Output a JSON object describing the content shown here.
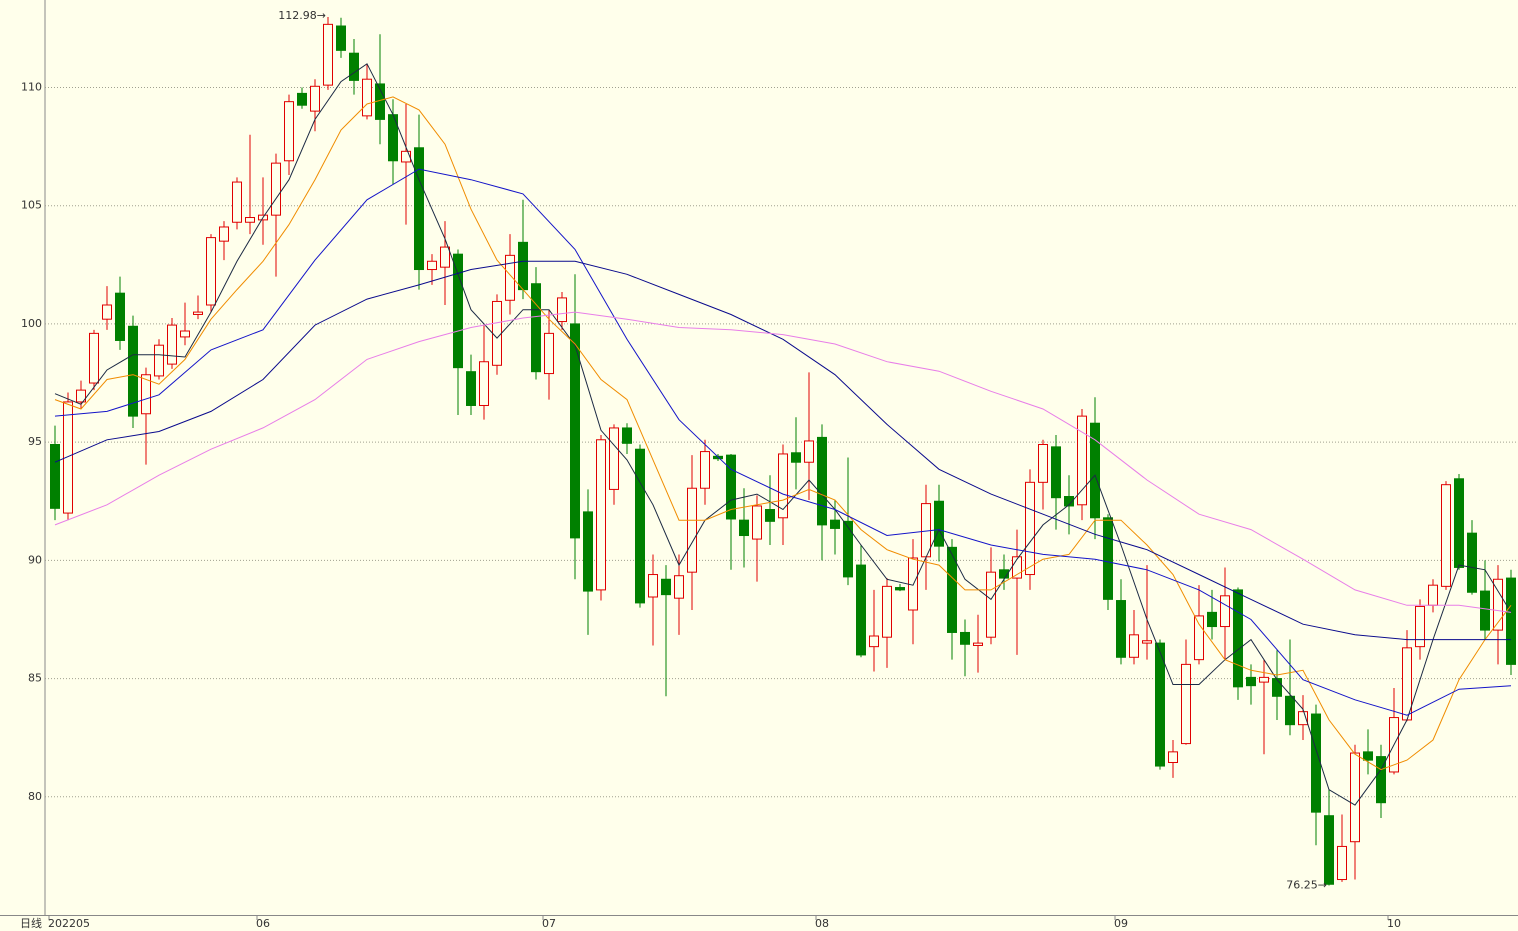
{
  "chart_data": {
    "type": "candlestick",
    "label": "日线",
    "high_label": "112.98→",
    "low_label": "76.25→",
    "ylim": [
      75.0,
      113.7
    ],
    "yticks": [
      80,
      85,
      90,
      95,
      100,
      105,
      110
    ],
    "grid": true,
    "up_color": "#e00000",
    "down_color": "#008000",
    "categories": [
      "202205",
      null,
      null,
      null,
      null,
      null,
      null,
      null,
      null,
      null,
      null,
      null,
      null,
      null,
      null,
      null,
      "06",
      null,
      null,
      null,
      null,
      null,
      null,
      null,
      null,
      null,
      null,
      null,
      null,
      null,
      null,
      null,
      null,
      null,
      null,
      null,
      null,
      null,
      "07",
      null,
      null,
      null,
      null,
      null,
      null,
      null,
      null,
      null,
      null,
      null,
      null,
      null,
      null,
      null,
      null,
      null,
      null,
      null,
      null,
      "08",
      null,
      null,
      null,
      null,
      null,
      null,
      null,
      null,
      null,
      null,
      null,
      null,
      null,
      null,
      null,
      null,
      null,
      null,
      null,
      null,
      null,
      null,
      "09",
      null,
      null,
      null,
      null,
      null,
      null,
      null,
      null,
      null,
      null,
      null,
      null,
      null,
      null,
      null,
      null,
      null,
      null,
      null,
      null,
      "10",
      null,
      null,
      null,
      null,
      null,
      null,
      null,
      null,
      null
    ],
    "open": [
      94.9,
      92.0,
      96.7,
      97.5,
      100.2,
      101.3,
      99.9,
      96.2,
      97.8,
      98.3,
      99.45,
      100.4,
      100.8,
      103.5,
      104.3,
      104.3,
      104.4,
      104.6,
      106.9,
      109.75,
      109.0,
      110.1,
      112.6,
      111.45,
      108.8,
      110.15,
      108.85,
      106.85,
      107.45,
      102.3,
      102.4,
      102.95,
      97.98,
      96.55,
      98.25,
      101.0,
      103.45,
      101.7,
      97.9,
      100.1,
      100.0,
      92.05,
      88.75,
      93.0,
      95.6,
      94.7,
      88.45,
      89.2,
      88.4,
      89.5,
      93.05,
      94.4,
      94.45,
      91.7,
      90.9,
      92.15,
      91.8,
      94.55,
      94.15,
      95.2,
      91.7,
      91.65,
      89.8,
      86.35,
      86.75,
      88.85,
      87.9,
      90.15,
      92.5,
      90.55,
      86.95,
      86.4,
      86.75,
      89.6,
      89.25,
      89.4,
      93.3,
      94.8,
      92.7,
      92.35,
      95.8,
      91.8,
      88.3,
      85.9,
      86.5,
      86.5,
      81.45,
      82.25,
      85.8,
      87.8,
      87.2,
      88.75,
      85.05,
      84.85,
      85.0,
      84.25,
      83.05,
      83.5,
      79.2,
      76.5,
      78.1,
      81.9,
      81.7,
      81.05,
      83.25,
      86.35,
      88.1,
      88.9,
      93.45,
      91.15,
      88.7,
      87.05,
      89.25
    ],
    "high": [
      95.7,
      97.1,
      97.6,
      99.75,
      101.6,
      102.0,
      100.35,
      98.15,
      99.35,
      100.25,
      100.9,
      101.2,
      103.8,
      104.35,
      106.2,
      108.0,
      106.2,
      107.2,
      109.7,
      110.0,
      110.35,
      112.98,
      112.95,
      112.05,
      111.0,
      112.25,
      109.5,
      109.3,
      108.85,
      102.95,
      104.35,
      103.15,
      98.7,
      99.95,
      101.25,
      103.8,
      105.25,
      102.4,
      100.6,
      101.35,
      102.1,
      93.0,
      95.3,
      95.75,
      95.8,
      94.9,
      90.25,
      89.8,
      90.25,
      94.45,
      95.1,
      94.5,
      94.5,
      93.05,
      92.75,
      93.6,
      94.9,
      96.05,
      97.95,
      95.75,
      92.55,
      94.35,
      90.65,
      88.75,
      89.25,
      89.0,
      90.9,
      93.2,
      93.2,
      90.9,
      87.5,
      87.7,
      90.55,
      90.25,
      91.3,
      93.85,
      95.1,
      95.3,
      93.6,
      96.4,
      96.9,
      91.95,
      89.2,
      87.9,
      89.8,
      86.65,
      82.4,
      86.65,
      88.95,
      88.75,
      89.7,
      88.85,
      85.6,
      85.8,
      86.2,
      86.65,
      84.3,
      83.9,
      80.3,
      79.25,
      82.2,
      82.85,
      82.2,
      84.6,
      87.05,
      88.35,
      89.2,
      93.35,
      93.65,
      91.7,
      90.0,
      89.8,
      89.6
    ],
    "low": [
      91.7,
      91.7,
      96.4,
      97.2,
      99.75,
      98.9,
      95.6,
      94.05,
      97.65,
      98.1,
      99.1,
      100.2,
      100.5,
      102.7,
      104.0,
      103.8,
      103.35,
      102.0,
      106.3,
      109.1,
      108.15,
      109.9,
      111.25,
      109.7,
      108.65,
      107.6,
      105.9,
      104.2,
      101.45,
      101.65,
      100.8,
      96.15,
      96.15,
      95.95,
      97.85,
      100.4,
      101.05,
      97.65,
      96.8,
      99.75,
      89.2,
      86.85,
      88.3,
      92.35,
      94.5,
      88.0,
      86.4,
      84.25,
      86.85,
      87.9,
      92.35,
      94.2,
      89.6,
      89.7,
      89.1,
      90.65,
      90.65,
      93.0,
      92.55,
      90.0,
      90.25,
      88.95,
      85.9,
      85.3,
      85.45,
      88.7,
      86.45,
      88.75,
      89.95,
      85.8,
      85.1,
      85.25,
      86.45,
      88.75,
      86.0,
      88.75,
      92.15,
      91.3,
      91.1,
      91.7,
      90.9,
      87.9,
      85.6,
      85.6,
      85.8,
      81.15,
      80.8,
      82.2,
      85.6,
      86.65,
      85.8,
      84.1,
      83.9,
      81.8,
      83.25,
      82.6,
      82.4,
      77.95,
      76.25,
      76.4,
      76.5,
      80.95,
      79.1,
      80.95,
      83.2,
      85.8,
      87.8,
      88.75,
      89.6,
      88.55,
      86.65,
      85.6,
      85.15
    ],
    "close": [
      92.2,
      96.7,
      97.2,
      99.6,
      100.8,
      99.3,
      96.1,
      97.85,
      99.1,
      99.95,
      99.7,
      100.5,
      103.65,
      104.1,
      106.0,
      104.5,
      104.6,
      106.8,
      109.4,
      109.25,
      110.05,
      112.67,
      111.57,
      110.3,
      110.35,
      108.65,
      106.9,
      107.3,
      102.3,
      102.65,
      103.25,
      98.15,
      96.55,
      98.4,
      100.95,
      102.9,
      101.45,
      97.98,
      99.6,
      101.1,
      90.95,
      88.7,
      95.1,
      95.6,
      94.95,
      88.2,
      89.4,
      88.55,
      89.35,
      93.05,
      94.6,
      94.3,
      91.75,
      91.05,
      92.3,
      91.65,
      94.5,
      94.15,
      95.05,
      91.5,
      91.35,
      89.3,
      86.0,
      86.8,
      88.9,
      88.75,
      90.1,
      92.4,
      90.6,
      86.95,
      86.45,
      86.5,
      89.5,
      89.25,
      90.15,
      93.3,
      94.9,
      92.65,
      92.3,
      96.1,
      91.8,
      88.35,
      85.9,
      86.85,
      86.6,
      81.3,
      81.9,
      85.6,
      87.65,
      87.2,
      88.5,
      84.65,
      84.7,
      85.05,
      84.25,
      83.05,
      83.6,
      79.35,
      76.3,
      77.9,
      81.85,
      81.55,
      79.75,
      83.35,
      86.3,
      88.05,
      88.95,
      93.2,
      89.7,
      88.65,
      87.05,
      89.2,
      85.6
    ],
    "lines": [
      {
        "color": "#1c2a44",
        "x": [
          0,
          2,
          4,
          6,
          8,
          10,
          12,
          14,
          16,
          18,
          20,
          22,
          24,
          26,
          28,
          30,
          32,
          34,
          36,
          38,
          40,
          42,
          44,
          46,
          48,
          50,
          52,
          54,
          56,
          58,
          60,
          62,
          64,
          66,
          68,
          70,
          72,
          74,
          76,
          78,
          80,
          82,
          84,
          86,
          88,
          90,
          92,
          94,
          96,
          98,
          100,
          102,
          104,
          106,
          108,
          110,
          112
        ],
        "values": [
          97.05,
          96.6,
          98.05,
          98.7,
          98.7,
          98.6,
          100.5,
          102.65,
          104.5,
          106.1,
          108.65,
          110.25,
          111.0,
          108.85,
          106.1,
          103.6,
          100.6,
          99.4,
          100.6,
          100.6,
          99.1,
          95.5,
          94.25,
          92.35,
          89.8,
          91.7,
          92.55,
          92.8,
          92.15,
          93.4,
          92.15,
          90.65,
          89.2,
          88.95,
          91.3,
          89.2,
          88.35,
          90.05,
          91.5,
          92.35,
          93.6,
          90.65,
          87.5,
          84.75,
          84.75,
          85.8,
          86.65,
          84.95,
          83.7,
          80.3,
          79.65,
          81.15,
          83.25,
          86.65,
          89.8,
          89.6,
          87.8
        ]
      },
      {
        "color": "#f08c00",
        "x": [
          0,
          2,
          4,
          6,
          8,
          10,
          12,
          14,
          16,
          18,
          20,
          22,
          24,
          26,
          28,
          30,
          32,
          34,
          36,
          38,
          40,
          42,
          44,
          46,
          48,
          50,
          52,
          54,
          56,
          58,
          60,
          62,
          64,
          66,
          68,
          70,
          72,
          74,
          76,
          78,
          80,
          82,
          84,
          86,
          88,
          90,
          92,
          94,
          96,
          98,
          100,
          102,
          104,
          106,
          108,
          110,
          112
        ],
        "values": [
          96.8,
          96.4,
          97.65,
          97.85,
          97.45,
          98.5,
          100.2,
          101.45,
          102.65,
          104.2,
          106.1,
          108.2,
          109.3,
          109.6,
          109.05,
          107.6,
          104.85,
          102.7,
          101.45,
          100.2,
          99.15,
          97.65,
          96.8,
          94.25,
          91.7,
          91.7,
          92.15,
          92.35,
          92.55,
          93.0,
          92.55,
          91.3,
          90.45,
          90.05,
          89.8,
          88.75,
          88.75,
          89.4,
          90.05,
          90.25,
          91.7,
          91.7,
          90.65,
          89.4,
          87.3,
          85.8,
          85.35,
          85.15,
          85.35,
          83.25,
          81.8,
          81.15,
          81.55,
          82.4,
          84.95,
          86.65,
          88.1
        ]
      },
      {
        "color": "#1414c8",
        "x": [
          0,
          4,
          8,
          12,
          16,
          20,
          24,
          28,
          32,
          36,
          40,
          44,
          48,
          52,
          56,
          60,
          64,
          68,
          72,
          76,
          80,
          84,
          88,
          92,
          96,
          100,
          104,
          108,
          112
        ],
        "values": [
          96.1,
          96.3,
          97.0,
          98.9,
          99.75,
          102.7,
          105.25,
          106.55,
          106.1,
          105.5,
          103.15,
          99.35,
          95.95,
          93.85,
          92.8,
          92.15,
          91.05,
          91.3,
          90.65,
          90.25,
          90.05,
          89.6,
          88.75,
          87.5,
          84.95,
          84.1,
          83.45,
          84.55,
          84.7
        ]
      },
      {
        "color": "#0a0a8c",
        "x": [
          0,
          4,
          8,
          12,
          16,
          20,
          24,
          28,
          32,
          36,
          40,
          44,
          48,
          52,
          56,
          60,
          64,
          68,
          72,
          76,
          80,
          84,
          88,
          92,
          96,
          100,
          104,
          108,
          112
        ],
        "values": [
          94.15,
          95.1,
          95.45,
          96.3,
          97.65,
          99.95,
          101.05,
          101.65,
          102.3,
          102.65,
          102.65,
          102.1,
          101.25,
          100.4,
          99.35,
          97.85,
          95.75,
          93.85,
          92.8,
          91.95,
          91.1,
          90.45,
          89.4,
          88.35,
          87.3,
          86.85,
          86.65,
          86.65,
          86.65
        ]
      },
      {
        "color": "#e87ee8",
        "x": [
          0,
          4,
          8,
          12,
          16,
          20,
          24,
          28,
          32,
          36,
          40,
          44,
          48,
          52,
          56,
          60,
          64,
          68,
          72,
          76,
          80,
          84,
          88,
          92,
          96,
          100,
          104,
          108,
          112
        ],
        "values": [
          91.5,
          92.35,
          93.6,
          94.7,
          95.6,
          96.8,
          98.5,
          99.25,
          99.85,
          100.25,
          100.5,
          100.2,
          99.85,
          99.75,
          99.55,
          99.15,
          98.4,
          98.0,
          97.15,
          96.4,
          95.1,
          93.4,
          91.95,
          91.3,
          90.05,
          88.75,
          88.1,
          88.1,
          87.8
        ]
      }
    ]
  }
}
